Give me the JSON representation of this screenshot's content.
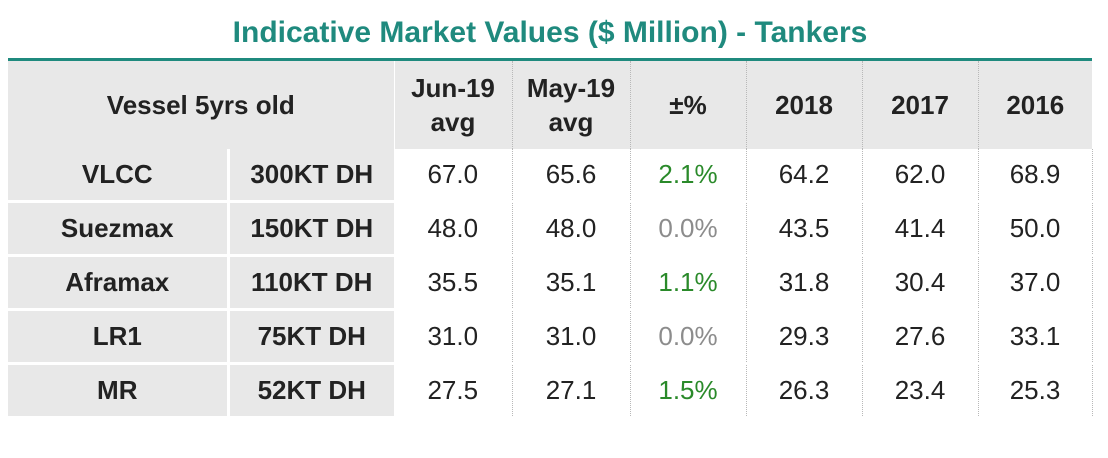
{
  "title": "Indicative Market Values ($ Million) - Tankers",
  "header": {
    "vessel": "Vessel 5yrs old",
    "col1_line1": "Jun-19",
    "col1_line2": "avg",
    "col2_line1": "May-19",
    "col2_line2": "avg",
    "col3": "±%",
    "col4": "2018",
    "col5": "2017",
    "col6": "2016"
  },
  "colors": {
    "title": "#1f8a7e",
    "positive": "#2a8a2a",
    "zero": "#8c8c8c",
    "shade": "#e8e8e8"
  },
  "rows": [
    {
      "name": "VLCC",
      "size": "300KT DH",
      "jun": "67.0",
      "may": "65.6",
      "chg": "2.1%",
      "chg_sign": "pos",
      "y2018": "64.2",
      "y2017": "62.0",
      "y2016": "68.9"
    },
    {
      "name": "Suezmax",
      "size": "150KT DH",
      "jun": "48.0",
      "may": "48.0",
      "chg": "0.0%",
      "chg_sign": "zero",
      "y2018": "43.5",
      "y2017": "41.4",
      "y2016": "50.0"
    },
    {
      "name": "Aframax",
      "size": "110KT DH",
      "jun": "35.5",
      "may": "35.1",
      "chg": "1.1%",
      "chg_sign": "pos",
      "y2018": "31.8",
      "y2017": "30.4",
      "y2016": "37.0"
    },
    {
      "name": "LR1",
      "size": "75KT DH",
      "jun": "31.0",
      "may": "31.0",
      "chg": "0.0%",
      "chg_sign": "zero",
      "y2018": "29.3",
      "y2017": "27.6",
      "y2016": "33.1"
    },
    {
      "name": "MR",
      "size": "52KT DH",
      "jun": "27.5",
      "may": "27.1",
      "chg": "1.5%",
      "chg_sign": "pos",
      "y2018": "26.3",
      "y2017": "23.4",
      "y2016": "25.3"
    }
  ]
}
